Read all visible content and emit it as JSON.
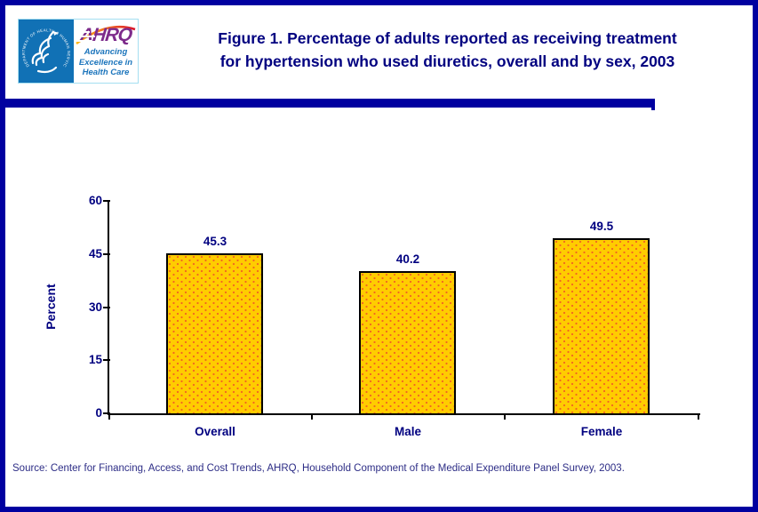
{
  "header": {
    "logo": {
      "hhs_seal_text": "DEPARTMENT OF HEALTH & HUMAN SERVICES · USA",
      "ahrq_acronym": "AHRQ",
      "tagline_lines": [
        "Advancing",
        "Excellence in",
        "Health Care"
      ]
    },
    "title_lines": [
      "Figure 1. Percentage of adults reported as receiving treatment",
      "for hypertension who used diuretics, overall and by sex, 2003"
    ]
  },
  "chart_data": {
    "type": "bar",
    "title": "Figure 1. Percentage of adults reported as receiving treatment for hypertension who used diuretics, overall and by sex, 2003",
    "categories": [
      "Overall",
      "Male",
      "Female"
    ],
    "values": [
      45.3,
      40.2,
      49.5
    ],
    "xlabel": "",
    "ylabel": "Percent",
    "ylim": [
      0,
      60
    ],
    "yticks": [
      0,
      15,
      30,
      45,
      60
    ],
    "grid": false,
    "legend": "none",
    "bar_fill": "#FFCC00",
    "bar_dot": "#F26522",
    "bar_border": "#000000",
    "value_label_color": "#000080"
  },
  "colors": {
    "frame_blue": "#0000A0",
    "navy_text": "#000080",
    "source_text": "#2D2D86",
    "hhs_blue": "#1171B5",
    "ahrq_purple": "#7D2B8B",
    "ahrq_blue": "#1C75BC",
    "arc_gradient": [
      "#FDB913",
      "#F26522",
      "#D8132B"
    ]
  },
  "footer": {
    "source": "Source: Center for Financing, Access, and Cost Trends, AHRQ, Household Component of the Medical Expenditure Panel Survey, 2003."
  }
}
